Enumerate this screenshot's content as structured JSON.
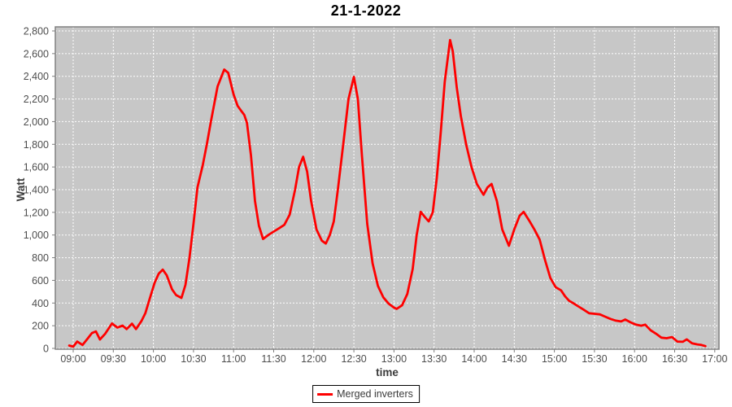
{
  "title": "21-1-2022",
  "legend": {
    "label": "Merged inverters"
  },
  "colors": {
    "line": "#fe0000",
    "plot_bg": "#c7c7c7",
    "grid": "#ffffff",
    "plot_border": "#808080",
    "tick_mark": "#7f7f7f",
    "tick_text": "#4d4d4d",
    "axis_label_text": "#3a3a3a",
    "title_text": "#000000",
    "page_bg": "#ffffff"
  },
  "chart_data": {
    "type": "line",
    "title": "21-1-2022",
    "xlabel": "time",
    "ylabel": "Watt",
    "ylim": [
      0,
      2800
    ],
    "y_tick_step": 200,
    "grid": true,
    "legend_position": "bottom-center",
    "x_tick_labels": [
      "09:00",
      "09:30",
      "10:00",
      "10:30",
      "11:00",
      "11:30",
      "12:00",
      "12:30",
      "13:00",
      "13:30",
      "14:00",
      "14:30",
      "15:00",
      "15:30",
      "16:00",
      "16:30",
      "17:00"
    ],
    "y_tick_labels": [
      "0",
      "200",
      "400",
      "600",
      "800",
      "1,000",
      "1,200",
      "1,400",
      "1,600",
      "1,800",
      "2,000",
      "2,200",
      "2,400",
      "2,600",
      "2,800"
    ],
    "series": [
      {
        "name": "Merged inverters",
        "color": "#fe0000",
        "points": [
          [
            "08:57",
            25
          ],
          [
            "09:00",
            15
          ],
          [
            "09:03",
            60
          ],
          [
            "09:07",
            30
          ],
          [
            "09:11",
            90
          ],
          [
            "09:14",
            135
          ],
          [
            "09:17",
            150
          ],
          [
            "09:20",
            78
          ],
          [
            "09:24",
            130
          ],
          [
            "09:29",
            220
          ],
          [
            "09:33",
            184
          ],
          [
            "09:37",
            201
          ],
          [
            "09:40",
            170
          ],
          [
            "09:44",
            218
          ],
          [
            "09:47",
            170
          ],
          [
            "09:51",
            240
          ],
          [
            "09:54",
            310
          ],
          [
            "09:57",
            430
          ],
          [
            "10:01",
            580
          ],
          [
            "10:04",
            660
          ],
          [
            "10:07",
            695
          ],
          [
            "10:10",
            645
          ],
          [
            "10:14",
            520
          ],
          [
            "10:17",
            470
          ],
          [
            "10:21",
            445
          ],
          [
            "10:24",
            560
          ],
          [
            "10:27",
            800
          ],
          [
            "10:30",
            1100
          ],
          [
            "10:33",
            1420
          ],
          [
            "10:37",
            1620
          ],
          [
            "10:40",
            1800
          ],
          [
            "10:43",
            2000
          ],
          [
            "10:48",
            2310
          ],
          [
            "10:53",
            2460
          ],
          [
            "10:56",
            2430
          ],
          [
            "11:00",
            2240
          ],
          [
            "11:03",
            2140
          ],
          [
            "11:06",
            2090
          ],
          [
            "11:08",
            2060
          ],
          [
            "11:10",
            1990
          ],
          [
            "11:13",
            1700
          ],
          [
            "11:16",
            1300
          ],
          [
            "11:19",
            1080
          ],
          [
            "11:22",
            965
          ],
          [
            "11:26",
            1000
          ],
          [
            "11:30",
            1030
          ],
          [
            "11:34",
            1060
          ],
          [
            "11:38",
            1090
          ],
          [
            "11:42",
            1180
          ],
          [
            "11:46",
            1400
          ],
          [
            "11:49",
            1600
          ],
          [
            "11:52",
            1690
          ],
          [
            "11:55",
            1560
          ],
          [
            "11:58",
            1300
          ],
          [
            "12:02",
            1050
          ],
          [
            "12:06",
            950
          ],
          [
            "12:09",
            925
          ],
          [
            "12:12",
            1000
          ],
          [
            "12:15",
            1120
          ],
          [
            "12:18",
            1400
          ],
          [
            "12:22",
            1800
          ],
          [
            "12:26",
            2200
          ],
          [
            "12:30",
            2395
          ],
          [
            "12:33",
            2200
          ],
          [
            "12:36",
            1700
          ],
          [
            "12:40",
            1100
          ],
          [
            "12:44",
            750
          ],
          [
            "12:48",
            550
          ],
          [
            "12:52",
            450
          ],
          [
            "12:56",
            395
          ],
          [
            "13:00",
            360
          ],
          [
            "13:02",
            348
          ],
          [
            "13:06",
            380
          ],
          [
            "13:10",
            480
          ],
          [
            "13:14",
            700
          ],
          [
            "13:17",
            1000
          ],
          [
            "13:20",
            1205
          ],
          [
            "13:23",
            1160
          ],
          [
            "13:26",
            1120
          ],
          [
            "13:29",
            1200
          ],
          [
            "13:32",
            1500
          ],
          [
            "13:35",
            1905
          ],
          [
            "13:38",
            2350
          ],
          [
            "13:42",
            2720
          ],
          [
            "13:44",
            2620
          ],
          [
            "13:47",
            2300
          ],
          [
            "13:50",
            2050
          ],
          [
            "13:54",
            1800
          ],
          [
            "13:58",
            1600
          ],
          [
            "14:02",
            1450
          ],
          [
            "14:07",
            1355
          ],
          [
            "14:10",
            1420
          ],
          [
            "14:13",
            1450
          ],
          [
            "14:17",
            1300
          ],
          [
            "14:21",
            1050
          ],
          [
            "14:26",
            905
          ],
          [
            "14:30",
            1050
          ],
          [
            "14:34",
            1170
          ],
          [
            "14:37",
            1205
          ],
          [
            "14:41",
            1130
          ],
          [
            "14:45",
            1050
          ],
          [
            "14:49",
            960
          ],
          [
            "14:53",
            780
          ],
          [
            "14:57",
            620
          ],
          [
            "15:01",
            540
          ],
          [
            "15:05",
            512
          ],
          [
            "15:08",
            460
          ],
          [
            "15:11",
            420
          ],
          [
            "15:14",
            400
          ],
          [
            "15:18",
            370
          ],
          [
            "15:22",
            340
          ],
          [
            "15:26",
            310
          ],
          [
            "15:30",
            305
          ],
          [
            "15:34",
            300
          ],
          [
            "15:38",
            280
          ],
          [
            "15:42",
            260
          ],
          [
            "15:46",
            245
          ],
          [
            "15:50",
            238
          ],
          [
            "15:53",
            255
          ],
          [
            "15:57",
            230
          ],
          [
            "16:01",
            210
          ],
          [
            "16:05",
            200
          ],
          [
            "16:08",
            210
          ],
          [
            "16:12",
            160
          ],
          [
            "16:16",
            130
          ],
          [
            "16:20",
            95
          ],
          [
            "16:24",
            90
          ],
          [
            "16:28",
            100
          ],
          [
            "16:32",
            60
          ],
          [
            "16:36",
            58
          ],
          [
            "16:39",
            80
          ],
          [
            "16:43",
            45
          ],
          [
            "16:47",
            35
          ],
          [
            "16:50",
            30
          ],
          [
            "16:53",
            20
          ]
        ]
      }
    ]
  }
}
